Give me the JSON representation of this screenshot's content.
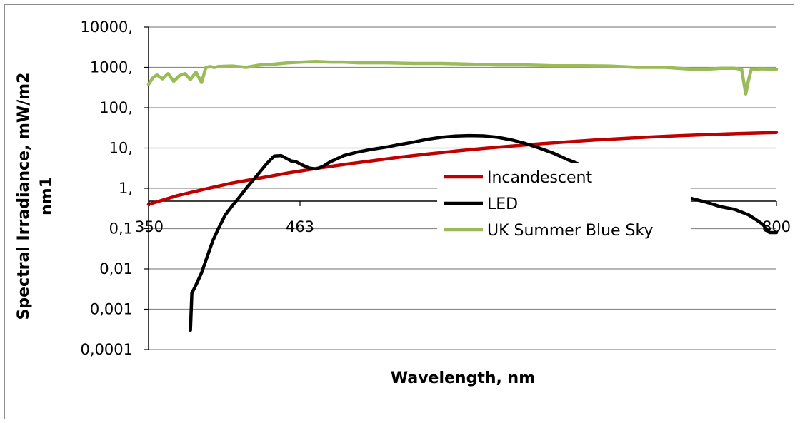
{
  "chart_data": {
    "type": "line",
    "xlabel": "Wavelength, nm",
    "ylabel": "Spectral Irradiance, mW/m2 nm1",
    "yscale": "log",
    "ylim": [
      0.0001,
      10000
    ],
    "xlim": [
      350,
      800
    ],
    "y_tick_labels": [
      "10000,",
      "1000,",
      "100,",
      "10,",
      "1,",
      "0,1",
      "0,01",
      "0,001",
      "0,0001"
    ],
    "x_tick_labels": [
      "350",
      "463",
      "800"
    ],
    "grid": "horizontal",
    "legend_position": "center-right",
    "series": [
      {
        "name": "Incandescent",
        "color": "#c00000",
        "x": [
          350,
          370,
          390,
          410,
          430,
          450,
          470,
          490,
          510,
          530,
          550,
          570,
          590,
          610,
          630,
          650,
          670,
          690,
          710,
          730,
          750,
          770,
          790,
          800
        ],
        "y": [
          0.4,
          0.65,
          0.95,
          1.35,
          1.8,
          2.4,
          3.1,
          3.9,
          4.8,
          5.9,
          7.1,
          8.4,
          9.8,
          11.2,
          12.7,
          14.2,
          15.8,
          17.3,
          18.8,
          20.2,
          21.5,
          22.7,
          23.8,
          24.3
        ]
      },
      {
        "name": "LED",
        "color": "#000000",
        "x": [
          380,
          381,
          384,
          388,
          392,
          396,
          400,
          405,
          410,
          415,
          420,
          425,
          430,
          435,
          440,
          445,
          449,
          452,
          456,
          460,
          465,
          470,
          475,
          480,
          490,
          500,
          510,
          520,
          530,
          540,
          550,
          560,
          570,
          580,
          590,
          600,
          610,
          620,
          630,
          640,
          650,
          660,
          670,
          680,
          690,
          700,
          710,
          720,
          730,
          740,
          750,
          760,
          770,
          780,
          785,
          790,
          795,
          800
        ],
        "y": [
          0.0003,
          0.0025,
          0.004,
          0.008,
          0.02,
          0.05,
          0.1,
          0.22,
          0.37,
          0.6,
          1.0,
          1.6,
          2.6,
          4.2,
          6.3,
          6.5,
          5.5,
          4.8,
          4.5,
          3.8,
          3.2,
          3.0,
          3.5,
          4.5,
          6.5,
          8.0,
          9.3,
          10.5,
          12.2,
          14.0,
          16.5,
          18.5,
          19.8,
          20.3,
          20.0,
          18.5,
          16.0,
          13.0,
          10.0,
          7.5,
          5.2,
          3.8,
          2.9,
          2.3,
          1.8,
          1.4,
          1.1,
          0.9,
          0.7,
          0.55,
          0.45,
          0.35,
          0.3,
          0.22,
          0.17,
          0.13,
          0.08,
          0.08
        ]
      },
      {
        "name": "UK Summer Blue Sky",
        "color": "#9bbb59",
        "x": [
          350,
          353,
          356,
          360,
          364,
          368,
          372,
          376,
          380,
          384,
          388,
          391,
          394,
          397,
          400,
          410,
          420,
          430,
          440,
          450,
          460,
          470,
          480,
          490,
          500,
          520,
          540,
          560,
          580,
          600,
          620,
          640,
          660,
          680,
          700,
          720,
          740,
          750,
          760,
          770,
          775,
          778,
          780,
          782,
          790,
          800
        ],
        "y": [
          380,
          550,
          650,
          520,
          700,
          450,
          620,
          700,
          500,
          760,
          420,
          980,
          1050,
          990,
          1050,
          1080,
          1000,
          1150,
          1200,
          1300,
          1350,
          1400,
          1350,
          1350,
          1300,
          1300,
          1250,
          1250,
          1200,
          1150,
          1150,
          1100,
          1100,
          1080,
          1000,
          1000,
          900,
          900,
          950,
          950,
          900,
          220,
          480,
          900,
          920,
          900
        ]
      }
    ]
  }
}
